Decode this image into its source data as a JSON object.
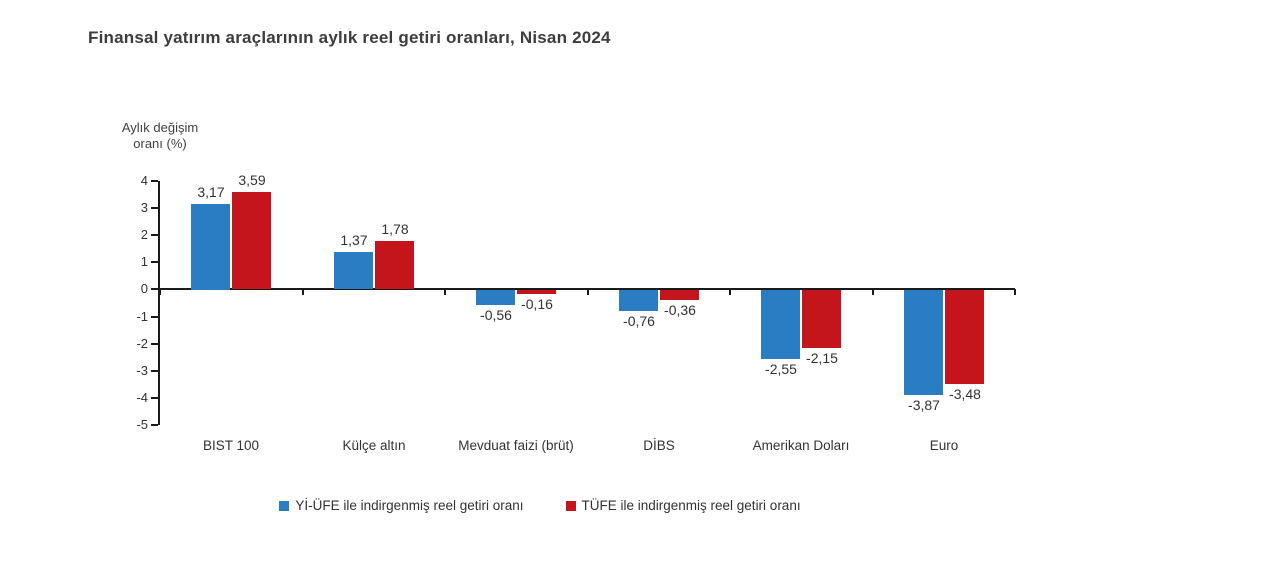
{
  "title": "Finansal yatırım araçlarının aylık reel getiri oranları, Nisan 2024",
  "axis": {
    "y_label_line1": "Aylık değişim",
    "y_label_line2": "oranı (%)"
  },
  "colors": {
    "series_blue": "#2a7cc3",
    "series_red": "#c4141c",
    "axis_line": "#1a1a1a",
    "text": "#333333"
  },
  "chart_data": {
    "type": "bar",
    "title": "Finansal yatırım araçlarının aylık reel getiri oranları, Nisan 2024",
    "categories": [
      "BIST 100",
      "Külçe altın",
      "Mevduat faizi (brüt)",
      "DİBS",
      "Amerikan Doları",
      "Euro"
    ],
    "series": [
      {
        "name": "Yİ-ÜFE ile indirgenmiş reel getiri oranı",
        "color": "#2a7cc3",
        "values": [
          3.17,
          1.37,
          -0.56,
          -0.76,
          -2.55,
          -3.87
        ],
        "labels": [
          "3,17",
          "1,37",
          "-0,56",
          "-0,76",
          "-2,55",
          "-3,87"
        ]
      },
      {
        "name": "TÜFE ile indirgenmiş reel getiri oranı",
        "color": "#c4141c",
        "values": [
          3.59,
          1.78,
          -0.16,
          -0.36,
          -2.15,
          -3.48
        ],
        "labels": [
          "3,59",
          "1,78",
          "-0,16",
          "-0,36",
          "-2,15",
          "-3,48"
        ]
      }
    ],
    "xlabel": "",
    "ylabel": "Aylık değişim oranı (%)",
    "ylim": [
      -5,
      4
    ],
    "yticks": [
      4,
      3,
      2,
      1,
      0,
      -1,
      -2,
      -3,
      -4,
      -5
    ],
    "grid": false,
    "legend_position": "bottom"
  }
}
